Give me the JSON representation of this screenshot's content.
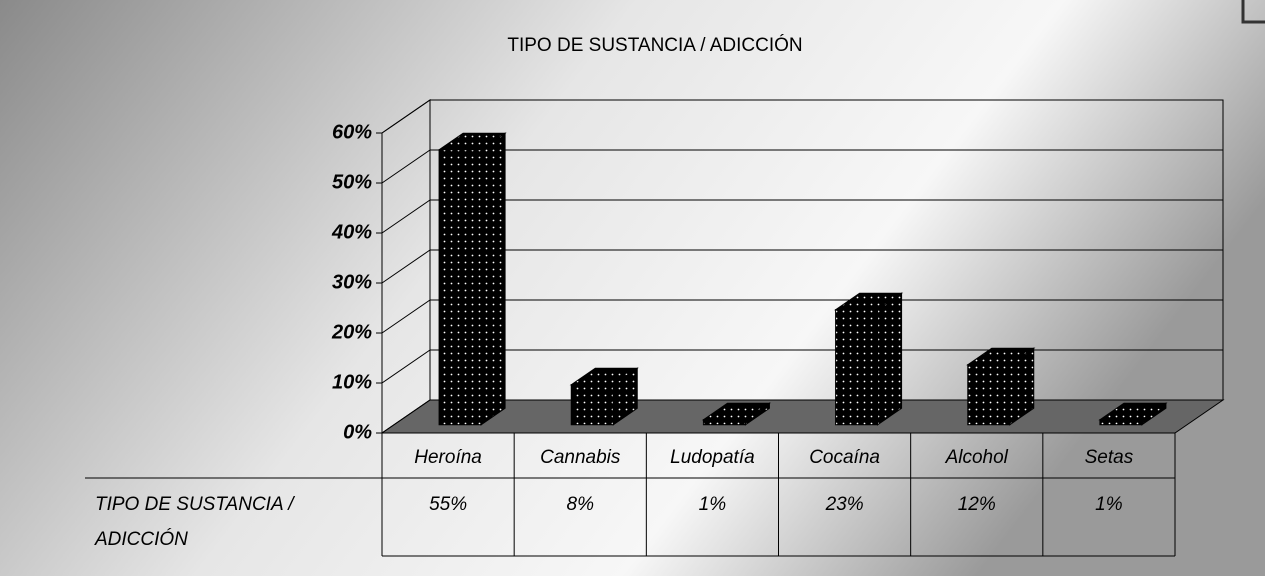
{
  "chart_data": {
    "type": "bar",
    "title": "TIPO DE SUSTANCIA / ADICCIÓN",
    "categories": [
      "Heroína",
      "Cannabis",
      "Ludopatía",
      "Cocaína",
      "Alcohol",
      "Setas"
    ],
    "series": [
      {
        "name": "TIPO DE SUSTANCIA / ADICCIÓN",
        "color": "#000000",
        "values": [
          55,
          8,
          1,
          23,
          12,
          1
        ],
        "value_labels": [
          "55%",
          "8%",
          "1%",
          "23%",
          "12%",
          "1%"
        ]
      }
    ],
    "ylim": [
      0,
      60
    ],
    "yticks": [
      {
        "value": 0,
        "label": "0%"
      },
      {
        "value": 10,
        "label": "10%"
      },
      {
        "value": 20,
        "label": "20%"
      },
      {
        "value": 30,
        "label": "30%"
      },
      {
        "value": 40,
        "label": "40%"
      },
      {
        "value": 50,
        "label": "50%"
      },
      {
        "value": 60,
        "label": "60%"
      }
    ],
    "grid": true
  }
}
